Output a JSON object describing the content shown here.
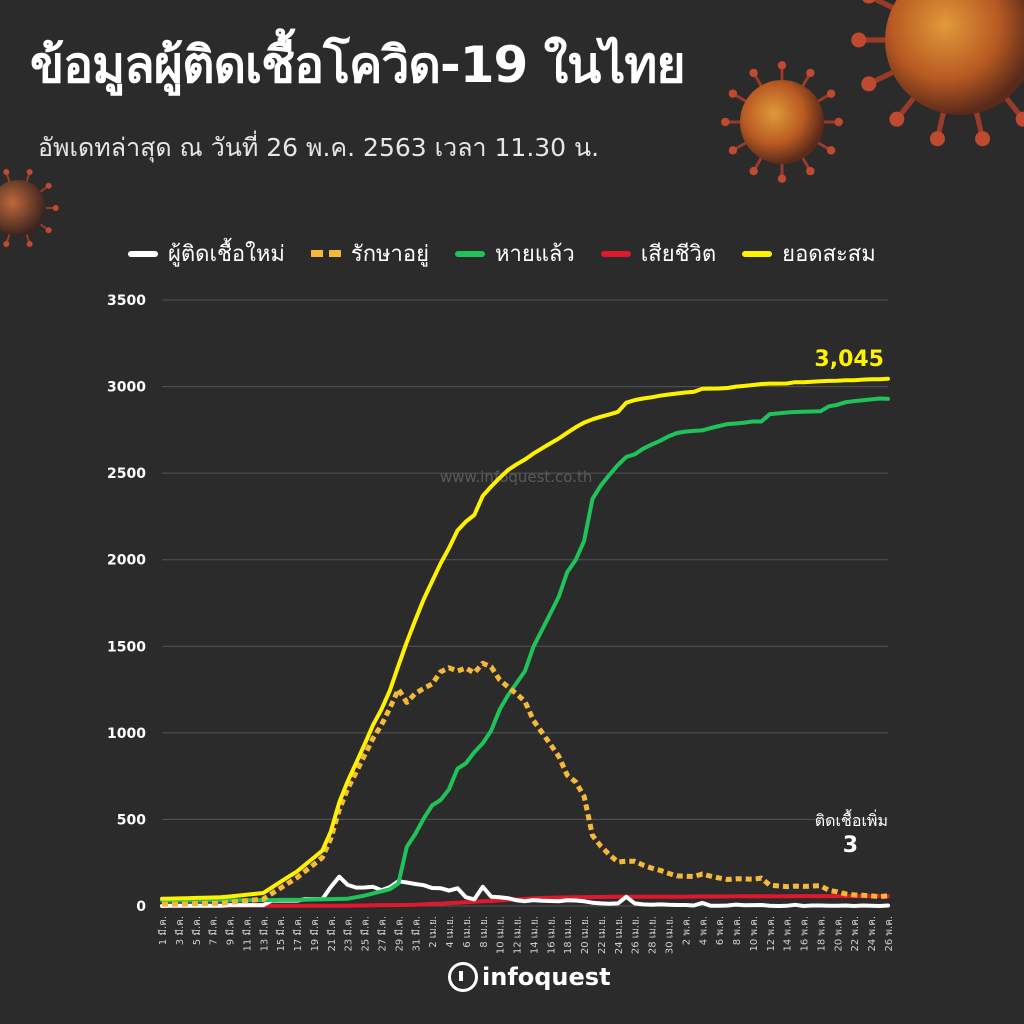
{
  "header": {
    "title": "ข้อมูลผู้ติดเชื้อโควิด-19 ในไทย",
    "subtitle": "อัพเดทล่าสุด ณ วันที่  26 พ.ค. 2563 เวลา 11.30 น."
  },
  "watermark": "www.infoquest.co.th",
  "brand": "infoquest",
  "colors": {
    "background": "#2b2b2b",
    "new_cases": "#ffffff",
    "active": "#f5b83b",
    "recovered": "#1fc35a",
    "deaths": "#e0182d",
    "cumulative": "#fff200"
  },
  "chart_data": {
    "type": "line",
    "ylim": [
      0,
      3500
    ],
    "yticks": [
      0,
      500,
      1000,
      1500,
      2000,
      2500,
      3000,
      3500
    ],
    "x_tick_labels": [
      "1 มี.ค.",
      "3 มี.ค.",
      "5 มี.ค.",
      "7 มี.ค.",
      "9 มี.ค.",
      "11 มี.ค.",
      "13 มี.ค.",
      "15 มี.ค.",
      "17 มี.ค.",
      "19 มี.ค.",
      "21 มี.ค.",
      "23 มี.ค.",
      "25 มี.ค.",
      "27 มี.ค.",
      "29 มี.ค.",
      "31 มี.ค.",
      "2 เม.ย.",
      "4 เม.ย.",
      "6 เม.ย.",
      "8 เม.ย.",
      "10 เม.ย.",
      "12 เม.ย.",
      "14 เม.ย.",
      "16 เม.ย.",
      "18 เม.ย.",
      "20 เม.ย.",
      "22 เม.ย.",
      "24 เม.ย.",
      "26 เม.ย.",
      "28 เม.ย.",
      "30 เม.ย.",
      "2 พ.ค.",
      "4 พ.ค.",
      "6 พ.ค.",
      "8 พ.ค.",
      "10 พ.ค.",
      "12 พ.ค.",
      "14 พ.ค.",
      "16 พ.ค.",
      "18 พ.ค.",
      "20 พ.ค.",
      "22 พ.ค.",
      "24 พ.ค.",
      "26 พ.ค."
    ],
    "series": [
      {
        "name": "ผู้ติดเชื้อใหม่",
        "key": "new_cases",
        "style": "solid",
        "values": [
          0,
          0,
          0,
          0,
          0,
          0,
          0,
          0,
          0,
          0,
          0,
          0,
          0,
          0,
          0,
          0,
          0,
          0,
          0,
          0,
          0,
          0,
          0,
          0,
          0,
          0,
          0,
          0,
          0,
          0,
          0,
          0,
          0,
          0,
          0,
          0,
          0,
          0,
          0,
          0,
          0,
          0,
          0,
          0,
          0,
          0,
          0,
          0,
          0,
          0,
          0,
          0,
          0,
          0,
          0,
          0,
          0,
          0,
          0,
          0,
          0,
          0,
          0,
          0,
          0,
          0,
          0,
          0,
          0,
          0,
          0,
          0,
          0,
          0,
          0,
          0,
          0,
          0,
          0,
          0,
          0,
          0,
          0,
          0,
          0,
          0,
          0,
          0
        ]
      },
      {
        "name": "รักษาอยู่",
        "key": "active",
        "style": "dash",
        "values": []
      },
      {
        "name": "หายแล้ว",
        "key": "recovered",
        "style": "solid",
        "values": []
      },
      {
        "name": "เสียชีวิต",
        "key": "deaths",
        "style": "solid",
        "values": []
      },
      {
        "name": "ยอดสะสม",
        "key": "cumulative",
        "style": "solid",
        "values": []
      }
    ],
    "annotations": {
      "cumulative_label": "3,045",
      "new_label": "ติดเชื้อเพิ่ม",
      "new_value": "3"
    }
  }
}
